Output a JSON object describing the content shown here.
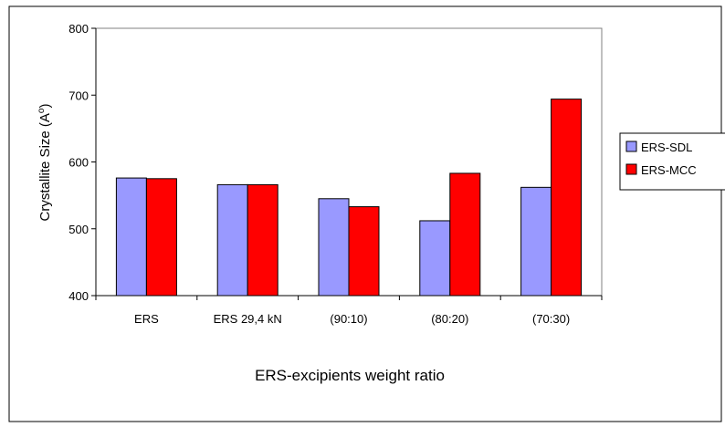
{
  "chart_data": {
    "type": "bar",
    "title": "",
    "xlabel": "ERS-excipients weight ratio",
    "ylabel": "Crystallite Size (A°)",
    "ylabel_base": "Crystallite Size (A",
    "ylabel_sup": "o",
    "ylabel_end": ")",
    "ylim": [
      400,
      800
    ],
    "yticks": [
      "400",
      "500",
      "600",
      "700",
      "800"
    ],
    "grid": false,
    "legend_position": "right",
    "categories": [
      "ERS",
      "ERS 29,4 kN",
      "(90:10)",
      "(80:20)",
      "(70:30)"
    ],
    "series": [
      {
        "name": "ERS-SDL",
        "color": "#9999ff",
        "values": [
          576,
          566,
          545,
          512,
          562
        ]
      },
      {
        "name": "ERS-MCC",
        "color": "#ff0000",
        "values": [
          575,
          566,
          533,
          583,
          694
        ]
      }
    ],
    "plot_background": "#ffffff"
  }
}
